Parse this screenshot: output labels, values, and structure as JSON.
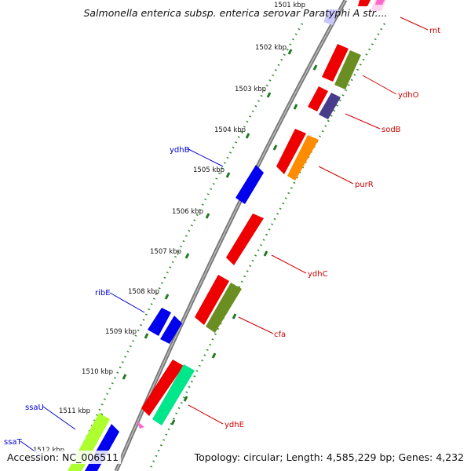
{
  "title": "Salmonella enterica subsp. enterica serovar Paratyphi A str....",
  "footer": {
    "accession": "Accession: NC_006511",
    "topology": "Topology: circular; Length: 4,585,229 bp; Genes: 4,232"
  },
  "colors": {
    "backbone": "#808080",
    "tick": "#1f7a1f",
    "dots": "#2e8b2e",
    "label_forward": "#cc0000",
    "label_reverse": "#0000cc"
  },
  "ticks": [
    "1501 kbp",
    "1502 kbp",
    "1503 kbp",
    "1504 kbp",
    "1505 kbp",
    "1506 kbp",
    "1507 kbp",
    "1508 kbp",
    "1509 kbp",
    "1510 kbp",
    "1511 kbp",
    "1512 kbp"
  ],
  "genes": [
    {
      "name": "rnt",
      "strand": "forward",
      "label_color": "#cc0000"
    },
    {
      "name": "ydhO",
      "strand": "forward",
      "label_color": "#cc0000"
    },
    {
      "name": "sodB",
      "strand": "forward",
      "label_color": "#cc0000"
    },
    {
      "name": "purR",
      "strand": "forward",
      "label_color": "#cc0000"
    },
    {
      "name": "ydhC",
      "strand": "forward",
      "label_color": "#cc0000"
    },
    {
      "name": "cfa",
      "strand": "forward",
      "label_color": "#cc0000"
    },
    {
      "name": "ydhE",
      "strand": "forward",
      "label_color": "#cc0000"
    },
    {
      "name": "ydhB",
      "strand": "reverse",
      "label_color": "#0000cc"
    },
    {
      "name": "ribE",
      "strand": "reverse",
      "label_color": "#0000cc"
    },
    {
      "name": "ssaU",
      "strand": "reverse",
      "label_color": "#0000cc"
    },
    {
      "name": "ssaT",
      "strand": "reverse",
      "label_color": "#0000cc"
    }
  ],
  "feature_colors": {
    "red": "#ee0000",
    "olive": "#6b8e23",
    "navy": "#483d8b",
    "orange": "#ff8c00",
    "blue": "#0000ee",
    "spring_green": "#00e68a",
    "yellow_green": "#adff2f",
    "pink": "#ff66cc",
    "light_pink": "#ffd6ee",
    "lavender": "#c8c8ff"
  }
}
